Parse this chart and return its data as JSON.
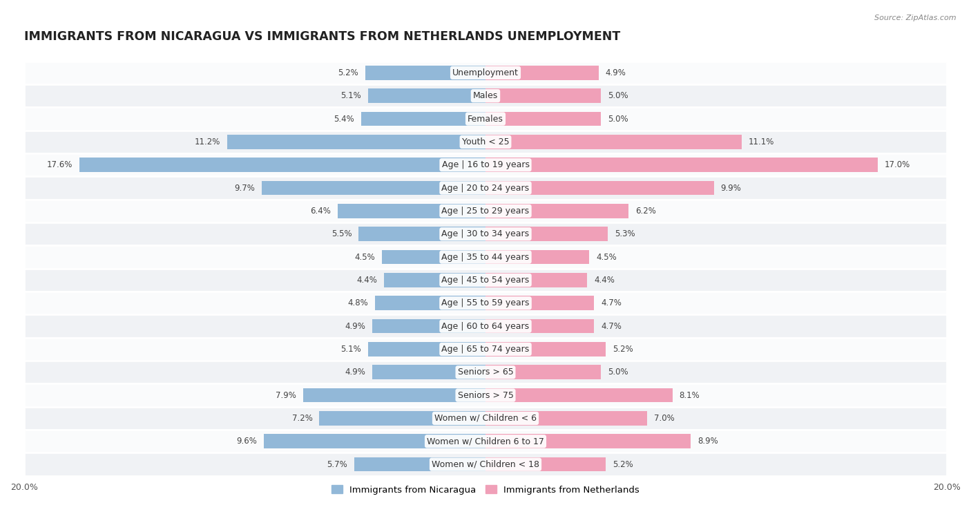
{
  "title": "IMMIGRANTS FROM NICARAGUA VS IMMIGRANTS FROM NETHERLANDS UNEMPLOYMENT",
  "source": "Source: ZipAtlas.com",
  "categories": [
    "Unemployment",
    "Males",
    "Females",
    "Youth < 25",
    "Age | 16 to 19 years",
    "Age | 20 to 24 years",
    "Age | 25 to 29 years",
    "Age | 30 to 34 years",
    "Age | 35 to 44 years",
    "Age | 45 to 54 years",
    "Age | 55 to 59 years",
    "Age | 60 to 64 years",
    "Age | 65 to 74 years",
    "Seniors > 65",
    "Seniors > 75",
    "Women w/ Children < 6",
    "Women w/ Children 6 to 17",
    "Women w/ Children < 18"
  ],
  "nicaragua_values": [
    5.2,
    5.1,
    5.4,
    11.2,
    17.6,
    9.7,
    6.4,
    5.5,
    4.5,
    4.4,
    4.8,
    4.9,
    5.1,
    4.9,
    7.9,
    7.2,
    9.6,
    5.7
  ],
  "netherlands_values": [
    4.9,
    5.0,
    5.0,
    11.1,
    17.0,
    9.9,
    6.2,
    5.3,
    4.5,
    4.4,
    4.7,
    4.7,
    5.2,
    5.0,
    8.1,
    7.0,
    8.9,
    5.2
  ],
  "nicaragua_color": "#92b8d8",
  "netherlands_color": "#f0a0b8",
  "bar_height": 0.62,
  "max_val": 20.0,
  "row_color_odd": "#f0f2f5",
  "row_color_even": "#fafbfc",
  "legend_nicaragua": "Immigrants from Nicaragua",
  "legend_netherlands": "Immigrants from Netherlands",
  "title_fontsize": 12.5,
  "label_fontsize": 9,
  "value_fontsize": 8.5,
  "source_fontsize": 8
}
